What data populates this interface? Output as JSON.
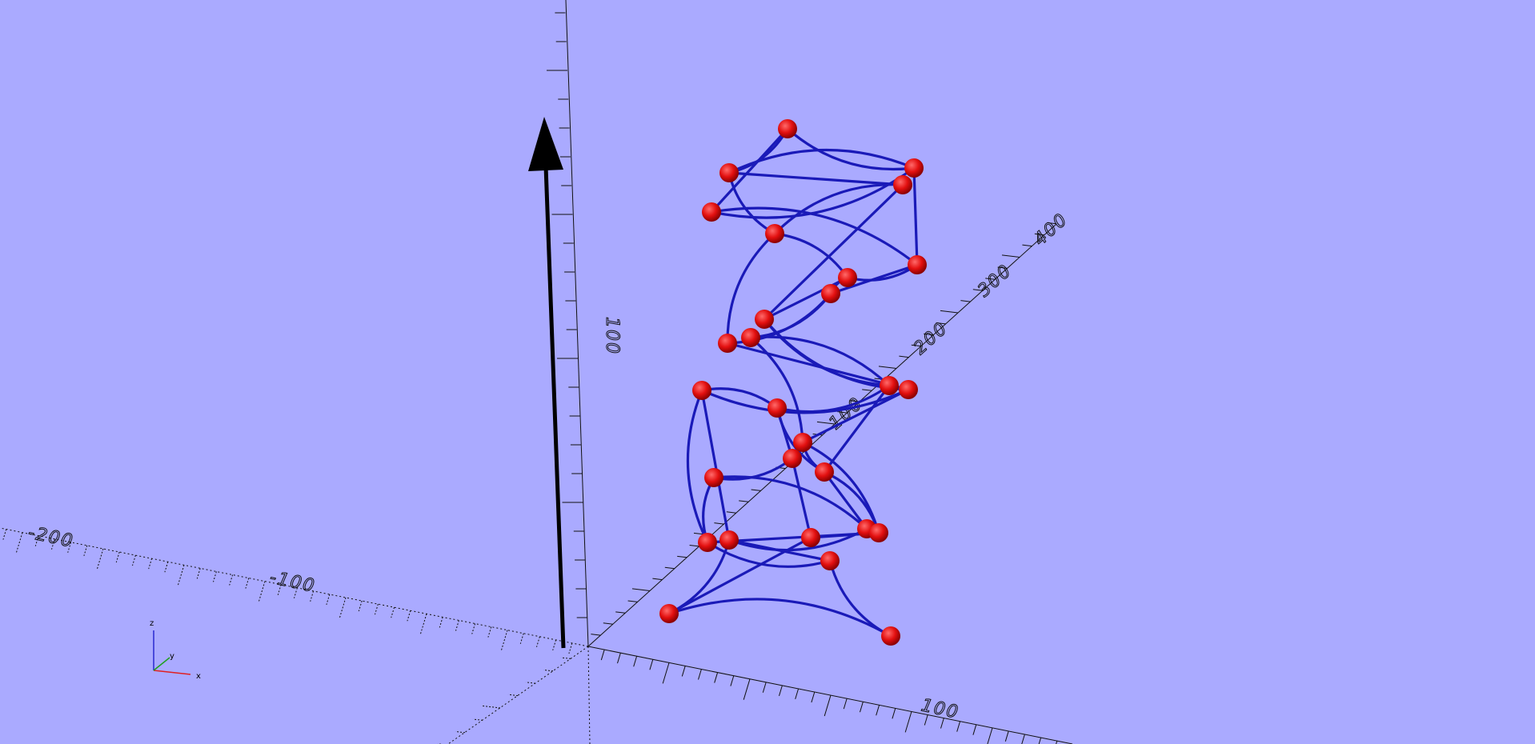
{
  "viewport": {
    "background": "#aaaaff",
    "axis_color": "#111111",
    "curve_color": "#1a1ab8",
    "node_color": "#e31010",
    "arrow_color": "#000000"
  },
  "axes": {
    "x_neg_labels": [
      "-200",
      "-100"
    ],
    "x_pos_labels": [
      "100"
    ],
    "y_labels": [
      "100",
      "200",
      "300",
      "400"
    ],
    "z_labels": [
      "100"
    ]
  },
  "gizmo": {
    "z_label": "z",
    "y_label": "y",
    "x_label": "x"
  },
  "model": {
    "description_icon": "twisted-helix-wireframe"
  }
}
